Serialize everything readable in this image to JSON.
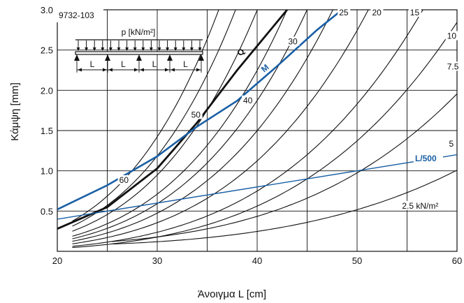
{
  "chart_data": {
    "type": "line",
    "code": "9732-103",
    "xlabel": "Άνοιγμα L [cm]",
    "ylabel": "Κάμψη [mm]",
    "xlim": [
      20,
      60
    ],
    "ylim": [
      0,
      3.0
    ],
    "x_ticks": [
      20,
      30,
      40,
      50,
      60
    ],
    "y_ticks": [
      "3.0",
      "2.5",
      "2.0",
      "1.5",
      "1.0",
      "0.5"
    ],
    "grid": true,
    "inset": {
      "load_label": "p [kN/m²]",
      "span_labels": [
        "L",
        "L",
        "L",
        "L"
      ]
    },
    "load_curves": [
      {
        "label": "60",
        "load": 60
      },
      {
        "label": "50",
        "load": 50
      },
      {
        "label": "40",
        "load": 40
      },
      {
        "label": "30",
        "load": 30
      },
      {
        "label": "25",
        "load": 25
      },
      {
        "label": "20",
        "load": 20
      },
      {
        "label": "15",
        "load": 15
      },
      {
        "label": "10",
        "load": 10
      },
      {
        "label": "7.5",
        "load": 7.5
      },
      {
        "label": "5",
        "load": 5
      },
      {
        "label": "2.5 kN/m²",
        "load": 2.5
      }
    ],
    "Q_curve": {
      "label": "Q",
      "points": [
        [
          20,
          0.28
        ],
        [
          25,
          0.55
        ],
        [
          30,
          1.03
        ],
        [
          34,
          1.6
        ],
        [
          38,
          2.25
        ],
        [
          40,
          2.55
        ],
        [
          43,
          3.0
        ]
      ]
    },
    "M_curve": {
      "label": "M",
      "points": [
        [
          20,
          0.52
        ],
        [
          25,
          0.82
        ],
        [
          30,
          1.18
        ],
        [
          34,
          1.55
        ],
        [
          38,
          1.87
        ],
        [
          42,
          2.3
        ],
        [
          46,
          2.75
        ],
        [
          48.5,
          3.0
        ]
      ]
    },
    "L500_line": {
      "label": "L/500",
      "points": [
        [
          20,
          0.4
        ],
        [
          60,
          1.2
        ]
      ]
    },
    "colors": {
      "black_curves": "#111111",
      "blue_curves": "#1a5fa5",
      "grid": "#111111"
    }
  }
}
